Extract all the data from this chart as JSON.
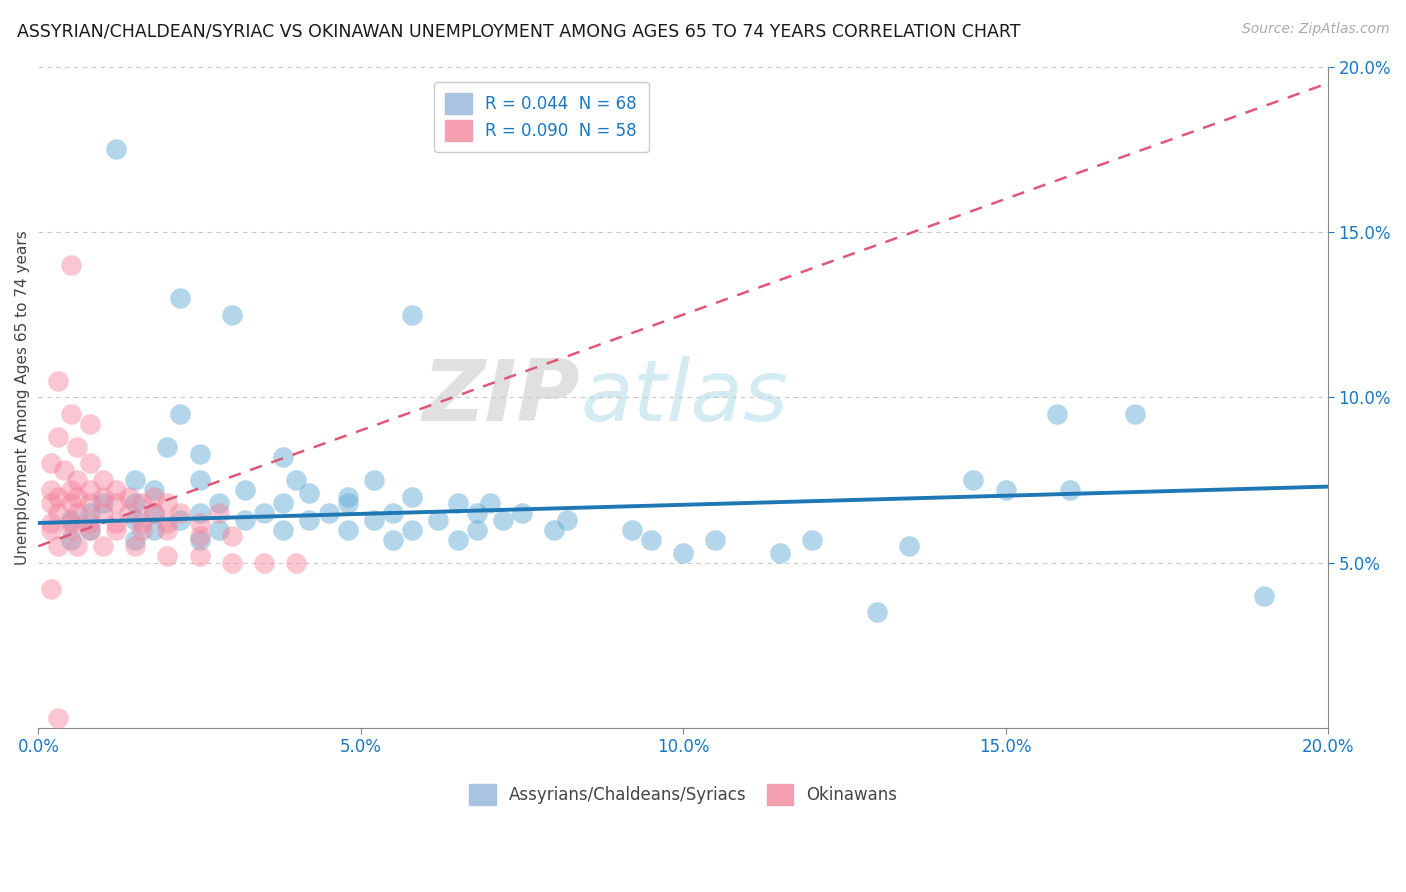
{
  "title": "ASSYRIAN/CHALDEAN/SYRIAC VS OKINAWAN UNEMPLOYMENT AMONG AGES 65 TO 74 YEARS CORRELATION CHART",
  "source": "Source: ZipAtlas.com",
  "ylabel": "Unemployment Among Ages 65 to 74 years",
  "xlim": [
    0.0,
    0.2
  ],
  "ylim": [
    0.0,
    0.2
  ],
  "xtick_labels": [
    "0.0%",
    "5.0%",
    "10.0%",
    "15.0%",
    "20.0%"
  ],
  "xtick_vals": [
    0.0,
    0.05,
    0.1,
    0.15,
    0.2
  ],
  "ytick_labels": [
    "5.0%",
    "10.0%",
    "15.0%",
    "20.0%"
  ],
  "ytick_vals": [
    0.05,
    0.1,
    0.15,
    0.2
  ],
  "blue_color": "#6aaed6",
  "pink_color": "#f4819a",
  "blue_line_color": "#1f77b4",
  "pink_line_color": "#e05878",
  "watermark_zip": "ZIP",
  "watermark_atlas": "atlas",
  "bg_color": "#ffffff",
  "grid_color": "#c8c8c8",
  "blue_scatter": [
    [
      0.012,
      0.175
    ],
    [
      0.022,
      0.13
    ],
    [
      0.03,
      0.125
    ],
    [
      0.058,
      0.125
    ],
    [
      0.022,
      0.095
    ],
    [
      0.02,
      0.085
    ],
    [
      0.025,
      0.083
    ],
    [
      0.038,
      0.082
    ],
    [
      0.015,
      0.075
    ],
    [
      0.025,
      0.075
    ],
    [
      0.04,
      0.075
    ],
    [
      0.052,
      0.075
    ],
    [
      0.018,
      0.072
    ],
    [
      0.032,
      0.072
    ],
    [
      0.042,
      0.071
    ],
    [
      0.048,
      0.07
    ],
    [
      0.058,
      0.07
    ],
    [
      0.01,
      0.068
    ],
    [
      0.015,
      0.068
    ],
    [
      0.028,
      0.068
    ],
    [
      0.038,
      0.068
    ],
    [
      0.048,
      0.068
    ],
    [
      0.065,
      0.068
    ],
    [
      0.07,
      0.068
    ],
    [
      0.008,
      0.065
    ],
    [
      0.018,
      0.065
    ],
    [
      0.025,
      0.065
    ],
    [
      0.035,
      0.065
    ],
    [
      0.045,
      0.065
    ],
    [
      0.055,
      0.065
    ],
    [
      0.068,
      0.065
    ],
    [
      0.075,
      0.065
    ],
    [
      0.005,
      0.063
    ],
    [
      0.015,
      0.063
    ],
    [
      0.022,
      0.063
    ],
    [
      0.032,
      0.063
    ],
    [
      0.042,
      0.063
    ],
    [
      0.052,
      0.063
    ],
    [
      0.062,
      0.063
    ],
    [
      0.072,
      0.063
    ],
    [
      0.082,
      0.063
    ],
    [
      0.008,
      0.06
    ],
    [
      0.018,
      0.06
    ],
    [
      0.028,
      0.06
    ],
    [
      0.038,
      0.06
    ],
    [
      0.048,
      0.06
    ],
    [
      0.058,
      0.06
    ],
    [
      0.068,
      0.06
    ],
    [
      0.08,
      0.06
    ],
    [
      0.092,
      0.06
    ],
    [
      0.005,
      0.057
    ],
    [
      0.015,
      0.057
    ],
    [
      0.025,
      0.057
    ],
    [
      0.055,
      0.057
    ],
    [
      0.065,
      0.057
    ],
    [
      0.095,
      0.057
    ],
    [
      0.105,
      0.057
    ],
    [
      0.12,
      0.057
    ],
    [
      0.135,
      0.055
    ],
    [
      0.15,
      0.072
    ],
    [
      0.158,
      0.095
    ],
    [
      0.17,
      0.095
    ],
    [
      0.145,
      0.075
    ],
    [
      0.1,
      0.053
    ],
    [
      0.115,
      0.053
    ],
    [
      0.13,
      0.035
    ],
    [
      0.19,
      0.04
    ],
    [
      0.16,
      0.072
    ]
  ],
  "pink_scatter": [
    [
      0.005,
      0.14
    ],
    [
      0.003,
      0.105
    ],
    [
      0.005,
      0.095
    ],
    [
      0.008,
      0.092
    ],
    [
      0.003,
      0.088
    ],
    [
      0.006,
      0.085
    ],
    [
      0.002,
      0.08
    ],
    [
      0.008,
      0.08
    ],
    [
      0.004,
      0.078
    ],
    [
      0.006,
      0.075
    ],
    [
      0.01,
      0.075
    ],
    [
      0.002,
      0.072
    ],
    [
      0.005,
      0.072
    ],
    [
      0.008,
      0.072
    ],
    [
      0.012,
      0.072
    ],
    [
      0.003,
      0.07
    ],
    [
      0.006,
      0.07
    ],
    [
      0.01,
      0.07
    ],
    [
      0.014,
      0.07
    ],
    [
      0.018,
      0.07
    ],
    [
      0.002,
      0.068
    ],
    [
      0.005,
      0.068
    ],
    [
      0.008,
      0.068
    ],
    [
      0.012,
      0.068
    ],
    [
      0.016,
      0.068
    ],
    [
      0.02,
      0.068
    ],
    [
      0.003,
      0.065
    ],
    [
      0.006,
      0.065
    ],
    [
      0.01,
      0.065
    ],
    [
      0.014,
      0.065
    ],
    [
      0.018,
      0.065
    ],
    [
      0.022,
      0.065
    ],
    [
      0.028,
      0.065
    ],
    [
      0.002,
      0.062
    ],
    [
      0.005,
      0.062
    ],
    [
      0.008,
      0.062
    ],
    [
      0.012,
      0.062
    ],
    [
      0.016,
      0.062
    ],
    [
      0.02,
      0.062
    ],
    [
      0.025,
      0.062
    ],
    [
      0.002,
      0.06
    ],
    [
      0.005,
      0.06
    ],
    [
      0.008,
      0.06
    ],
    [
      0.012,
      0.06
    ],
    [
      0.016,
      0.06
    ],
    [
      0.02,
      0.06
    ],
    [
      0.025,
      0.058
    ],
    [
      0.03,
      0.058
    ],
    [
      0.003,
      0.055
    ],
    [
      0.006,
      0.055
    ],
    [
      0.01,
      0.055
    ],
    [
      0.015,
      0.055
    ],
    [
      0.02,
      0.052
    ],
    [
      0.025,
      0.052
    ],
    [
      0.03,
      0.05
    ],
    [
      0.035,
      0.05
    ],
    [
      0.04,
      0.05
    ],
    [
      0.002,
      0.042
    ],
    [
      0.003,
      0.003
    ]
  ],
  "blue_line": [
    [
      0.0,
      0.062
    ],
    [
      0.2,
      0.073
    ]
  ],
  "pink_line": [
    [
      0.0,
      0.055
    ],
    [
      0.2,
      0.195
    ]
  ]
}
